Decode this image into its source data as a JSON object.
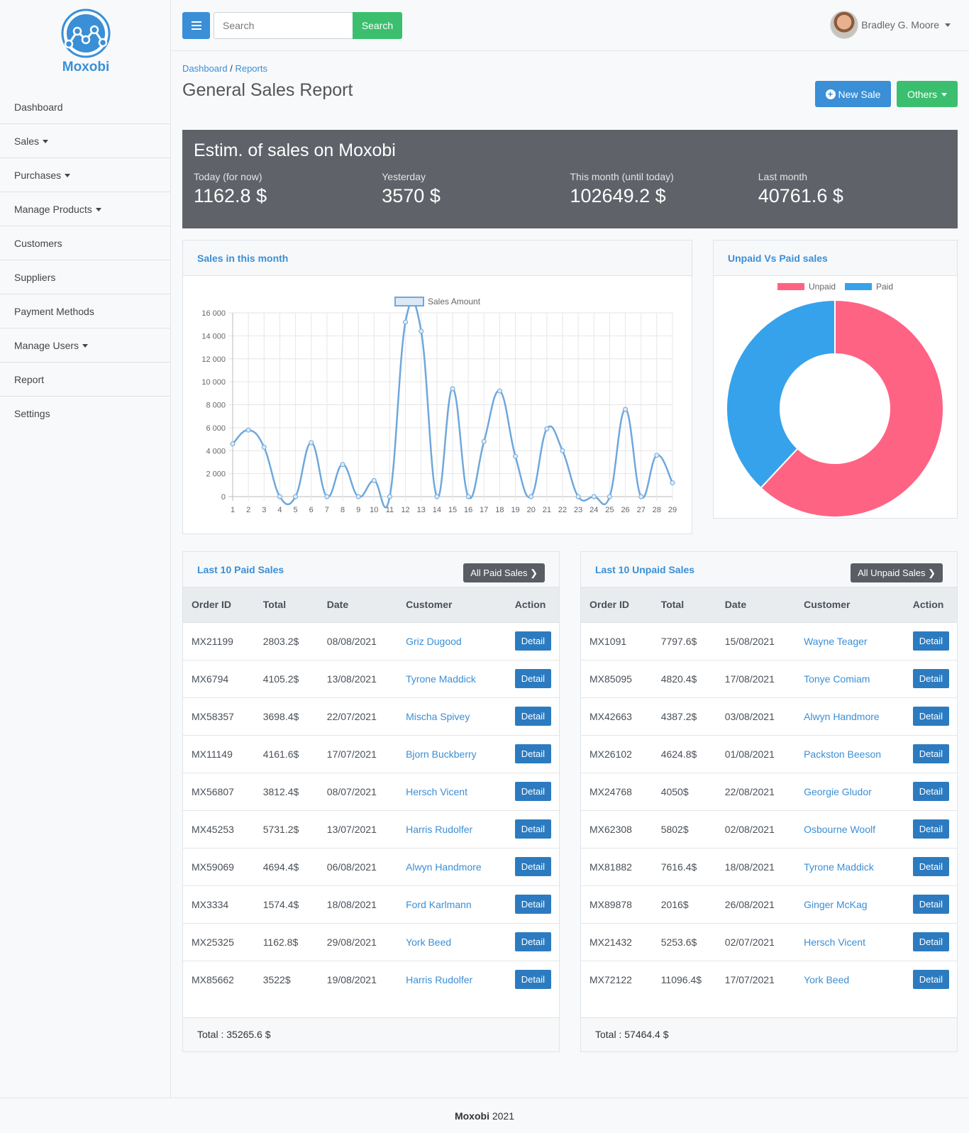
{
  "brand": {
    "name": "Moxobi"
  },
  "nav": [
    {
      "label": "Dashboard",
      "dropdown": false
    },
    {
      "label": "Sales",
      "dropdown": true
    },
    {
      "label": "Purchases",
      "dropdown": true
    },
    {
      "label": "Manage Products",
      "dropdown": true
    },
    {
      "label": "Customers",
      "dropdown": false
    },
    {
      "label": "Suppliers",
      "dropdown": false
    },
    {
      "label": "Payment Methods",
      "dropdown": false
    },
    {
      "label": "Manage Users",
      "dropdown": true
    },
    {
      "label": "Report",
      "dropdown": false
    },
    {
      "label": "Settings",
      "dropdown": false
    }
  ],
  "topbar": {
    "menu_icon": "hamburger-icon",
    "search_placeholder": "Search",
    "search_button": "Search",
    "user_name": "Bradley G. Moore"
  },
  "breadcrumb": {
    "home": "Dashboard",
    "separator": " / ",
    "current": "Reports"
  },
  "page": {
    "title": "General Sales Report",
    "new_sale": "New Sale",
    "others": "Others"
  },
  "estim": {
    "title": "Estim. of sales on Moxobi",
    "stats": [
      {
        "label": "Today (for now)",
        "value": "1162.8 $"
      },
      {
        "label": "Yesterday",
        "value": "3570 $"
      },
      {
        "label": "This month (until today)",
        "value": "102649.2 $"
      },
      {
        "label": "Last month",
        "value": "40761.6 $"
      }
    ]
  },
  "sales_card": {
    "title": "Sales in this month"
  },
  "donut_card": {
    "title": "Unpaid Vs Paid sales"
  },
  "chart_data": [
    {
      "type": "line",
      "title": "",
      "series": [
        {
          "name": "Sales Amount",
          "color": "#6fa8dc",
          "values": [
            4600,
            5800,
            4300,
            0,
            0,
            4700,
            0,
            2800,
            0,
            1400,
            0,
            15200,
            14400,
            0,
            9400,
            0,
            4800,
            9200,
            3500,
            0,
            5900,
            4000,
            0,
            0,
            0,
            7600,
            0,
            3600,
            1200
          ]
        }
      ],
      "x": [
        "1",
        "2",
        "3",
        "4",
        "5",
        "6",
        "7",
        "8",
        "9",
        "10",
        "11",
        "12",
        "13",
        "14",
        "15",
        "16",
        "17",
        "18",
        "19",
        "20",
        "21",
        "22",
        "23",
        "24",
        "25",
        "26",
        "27",
        "28",
        "29"
      ],
      "ylim": [
        0,
        16000
      ],
      "yticks": [
        "0",
        "2 000",
        "4 000",
        "6 000",
        "8 000",
        "10 000",
        "12 000",
        "14 000",
        "16 000"
      ],
      "grid": true,
      "legend": "top"
    },
    {
      "type": "pie",
      "title": "",
      "labels": [
        "Unpaid",
        "Paid"
      ],
      "values": [
        57464.4,
        35265.6
      ],
      "colors": [
        "#ff6384",
        "#36a2eb"
      ],
      "legend": "top"
    }
  ],
  "paid_card": {
    "title": "Last 10 Paid Sales",
    "button": "All Paid Sales",
    "headers": [
      "Order ID",
      "Total",
      "Date",
      "Customer",
      "Action"
    ],
    "rows": [
      [
        "MX21199",
        "2803.2$",
        "08/08/2021",
        "Griz Dugood"
      ],
      [
        "MX6794",
        "4105.2$",
        "13/08/2021",
        "Tyrone Maddick"
      ],
      [
        "MX58357",
        "3698.4$",
        "22/07/2021",
        "Mischa Spivey"
      ],
      [
        "MX11149",
        "4161.6$",
        "17/07/2021",
        "Bjorn Buckberry"
      ],
      [
        "MX56807",
        "3812.4$",
        "08/07/2021",
        "Hersch Vicent"
      ],
      [
        "MX45253",
        "5731.2$",
        "13/07/2021",
        "Harris Rudolfer"
      ],
      [
        "MX59069",
        "4694.4$",
        "06/08/2021",
        "Alwyn Handmore"
      ],
      [
        "MX3334",
        "1574.4$",
        "18/08/2021",
        "Ford Karlmann"
      ],
      [
        "MX25325",
        "1162.8$",
        "29/08/2021",
        "York Beed"
      ],
      [
        "MX85662",
        "3522$",
        "19/08/2021",
        "Harris Rudolfer"
      ]
    ],
    "detail_label": "Detail",
    "total": "Total : 35265.6 $"
  },
  "unpaid_card": {
    "title": "Last 10 Unpaid Sales",
    "button": "All Unpaid Sales",
    "headers": [
      "Order ID",
      "Total",
      "Date",
      "Customer",
      "Action"
    ],
    "rows": [
      [
        "MX1091",
        "7797.6$",
        "15/08/2021",
        "Wayne Teager"
      ],
      [
        "MX85095",
        "4820.4$",
        "17/08/2021",
        "Tonye Comiam"
      ],
      [
        "MX42663",
        "4387.2$",
        "03/08/2021",
        "Alwyn Handmore"
      ],
      [
        "MX26102",
        "4624.8$",
        "01/08/2021",
        "Packston Beeson"
      ],
      [
        "MX24768",
        "4050$",
        "22/08/2021",
        "Georgie Gludor"
      ],
      [
        "MX62308",
        "5802$",
        "02/08/2021",
        "Osbourne Woolf"
      ],
      [
        "MX81882",
        "7616.4$",
        "18/08/2021",
        "Tyrone Maddick"
      ],
      [
        "MX89878",
        "2016$",
        "26/08/2021",
        "Ginger McKag"
      ],
      [
        "MX21432",
        "5253.6$",
        "02/07/2021",
        "Hersch Vicent"
      ],
      [
        "MX72122",
        "11096.4$",
        "17/07/2021",
        "York Beed"
      ]
    ],
    "detail_label": "Detail",
    "total": "Total : 57464.4 $"
  },
  "footer": {
    "brand": "Moxobi",
    "year": "2021"
  }
}
